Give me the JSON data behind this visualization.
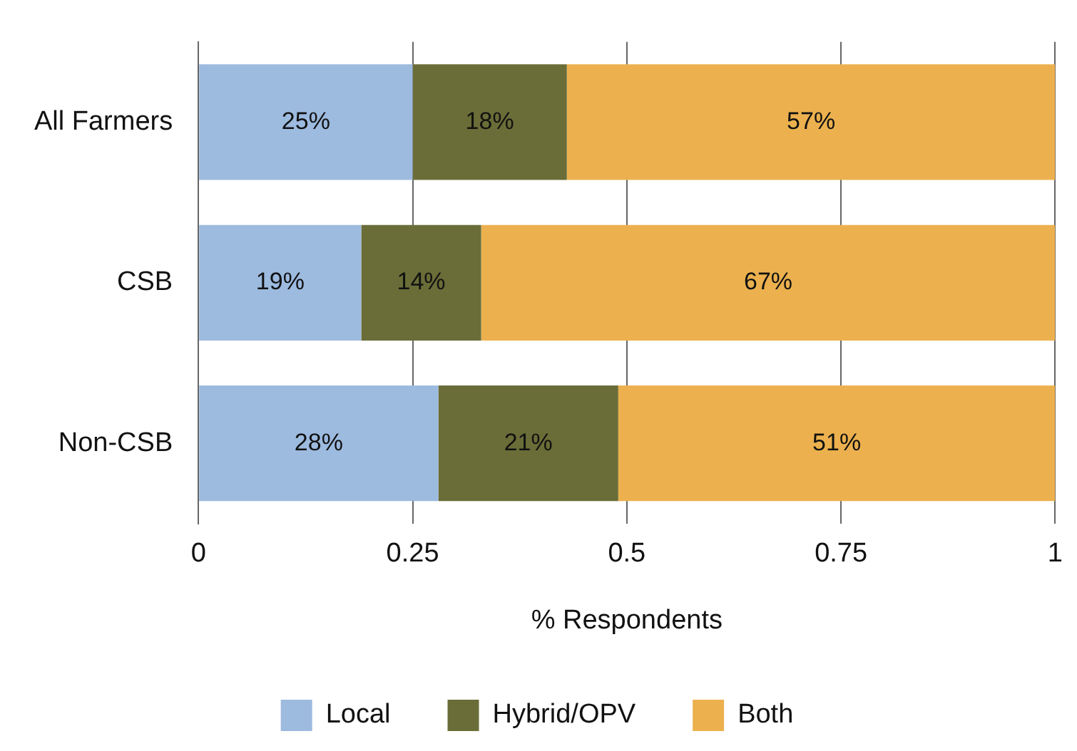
{
  "chart_data": {
    "type": "bar",
    "orientation": "horizontal",
    "stacked": true,
    "xlabel": "% Respondents",
    "categories": [
      "All Farmers",
      "CSB",
      "Non-CSB"
    ],
    "series": [
      {
        "name": "Local",
        "color": "#9dbadf",
        "values": [
          0.25,
          0.19,
          0.28
        ],
        "value_labels": [
          "25%",
          "19%",
          "28%"
        ]
      },
      {
        "name": "Hybrid/OPV",
        "color": "#6a6d37",
        "values": [
          0.18,
          0.14,
          0.21
        ],
        "value_labels": [
          "18%",
          "14%",
          "21%"
        ]
      },
      {
        "name": "Both",
        "color": "#ecb14e",
        "values": [
          0.57,
          0.67,
          0.51
        ],
        "value_labels": [
          "57%",
          "67%",
          "51%"
        ]
      }
    ],
    "xlim": [
      0,
      1
    ],
    "xticks": [
      0,
      0.25,
      0.5,
      0.75,
      1
    ],
    "grid": "x",
    "legend": "bottom"
  }
}
